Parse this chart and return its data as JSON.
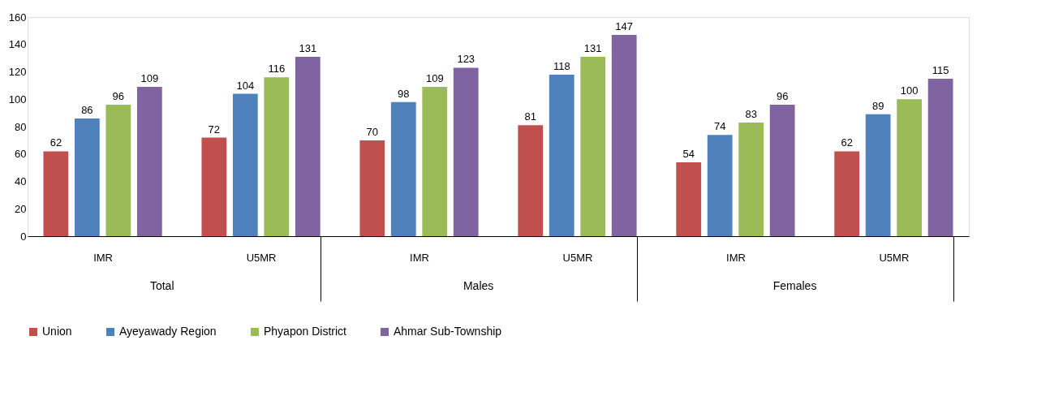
{
  "chart_data": {
    "type": "bar",
    "categories": [
      "IMR",
      "U5MR",
      "IMR",
      "U5MR",
      "IMR",
      "U5MR"
    ],
    "annotations": [
      "Total",
      "Males",
      "Females"
    ],
    "series": [
      {
        "name": "Union",
        "color": "#c0504d",
        "values": [
          62,
          72,
          70,
          81,
          54,
          62
        ]
      },
      {
        "name": "Ayeyawady Region",
        "color": "#4f81bd",
        "values": [
          86,
          104,
          98,
          118,
          74,
          89
        ]
      },
      {
        "name": "Phyapon District",
        "color": "#9bbb59",
        "values": [
          96,
          116,
          109,
          131,
          83,
          100
        ]
      },
      {
        "name": "Ahmar Sub-Township",
        "color": "#8064a2",
        "values": [
          109,
          131,
          123,
          147,
          96,
          115
        ]
      }
    ],
    "ylim": [
      0,
      160
    ],
    "yticks": [
      0,
      20,
      40,
      60,
      80,
      100,
      120,
      140,
      160
    ],
    "data_labels": true,
    "grid": false,
    "legend": "bottom"
  }
}
